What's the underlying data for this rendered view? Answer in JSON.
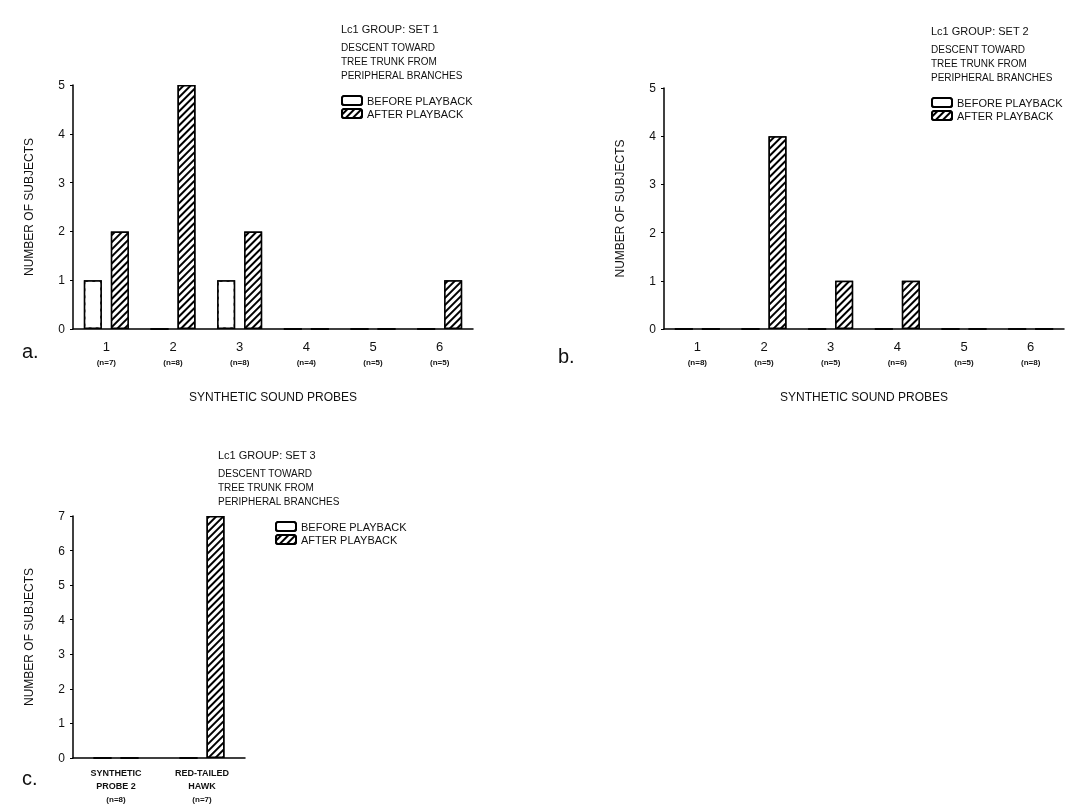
{
  "chart_data": [
    {
      "type": "bar",
      "title": "Lc1 GROUP: SET 1",
      "subtitle": "DESCENT TOWARD\nTREE TRUNK FROM\nPERIPHERAL BRANCHES",
      "xlabel": "SYNTHETIC SOUND PROBES",
      "ylabel": "NUMBER OF SUBJECTS",
      "annotations": [
        "a."
      ],
      "categories": [
        "1\n(n=7)",
        "2\n(n=8)",
        "3\n(n=8)",
        "4\n(n=4)",
        "5\n(n=5)",
        "6\n(n=5)"
      ],
      "series": [
        {
          "name": "BEFORE PLAYBACK",
          "color": "#ffffff",
          "values": [
            1,
            0,
            1,
            0,
            0,
            0
          ]
        },
        {
          "name": "AFTER PLAYBACK",
          "color": "#000000",
          "values": [
            2,
            5,
            2,
            0,
            0,
            1
          ]
        }
      ],
      "ylim": [
        0,
        5
      ],
      "yticks": [
        0,
        1,
        2,
        3,
        4,
        5
      ],
      "grid": false,
      "legend": "top right"
    },
    {
      "type": "bar",
      "title": "Lc1 GROUP: SET 2",
      "subtitle": "DESCENT TOWARD\nTREE TRUNK FROM\nPERIPHERAL BRANCHES",
      "xlabel": "SYNTHETIC SOUND PROBES",
      "ylabel": "NUMBER OF SUBJECTS",
      "annotations": [
        "b."
      ],
      "categories": [
        "1\n(n=8)",
        "2\n(n=5)",
        "3\n(n=5)",
        "4\n(n=6)",
        "5\n(n=5)",
        "6\n(n=8)"
      ],
      "series": [
        {
          "name": "BEFORE PLAYBACK",
          "color": "#ffffff",
          "values": [
            0,
            0,
            0,
            0,
            0,
            0
          ]
        },
        {
          "name": "AFTER PLAYBACK",
          "color": "#000000",
          "values": [
            0,
            4,
            1,
            1,
            0,
            0
          ]
        }
      ],
      "ylim": [
        0,
        5
      ],
      "yticks": [
        0,
        1,
        2,
        3,
        4,
        5
      ],
      "grid": false,
      "legend": "top right"
    },
    {
      "type": "bar",
      "title": "Lc1 GROUP: SET 3",
      "subtitle": "DESCENT TOWARD\nTREE TRUNK FROM\nPERIPHERAL BRANCHES",
      "ylabel": "NUMBER OF SUBJECTS",
      "annotations": [
        "c."
      ],
      "categories": [
        "SYNTHETIC\nPROBE 2\n(n=8)",
        "RED-TAILED\nHAWK\n(n=7)"
      ],
      "series": [
        {
          "name": "BEFORE PLAYBACK",
          "color": "#ffffff",
          "values": [
            0,
            0
          ]
        },
        {
          "name": "AFTER PLAYBACK",
          "color": "#000000",
          "values": [
            0,
            7
          ]
        }
      ],
      "ylim": [
        0,
        7
      ],
      "yticks": [
        0,
        1,
        2,
        3,
        4,
        5,
        6,
        7
      ],
      "grid": false,
      "legend": "top right"
    }
  ]
}
